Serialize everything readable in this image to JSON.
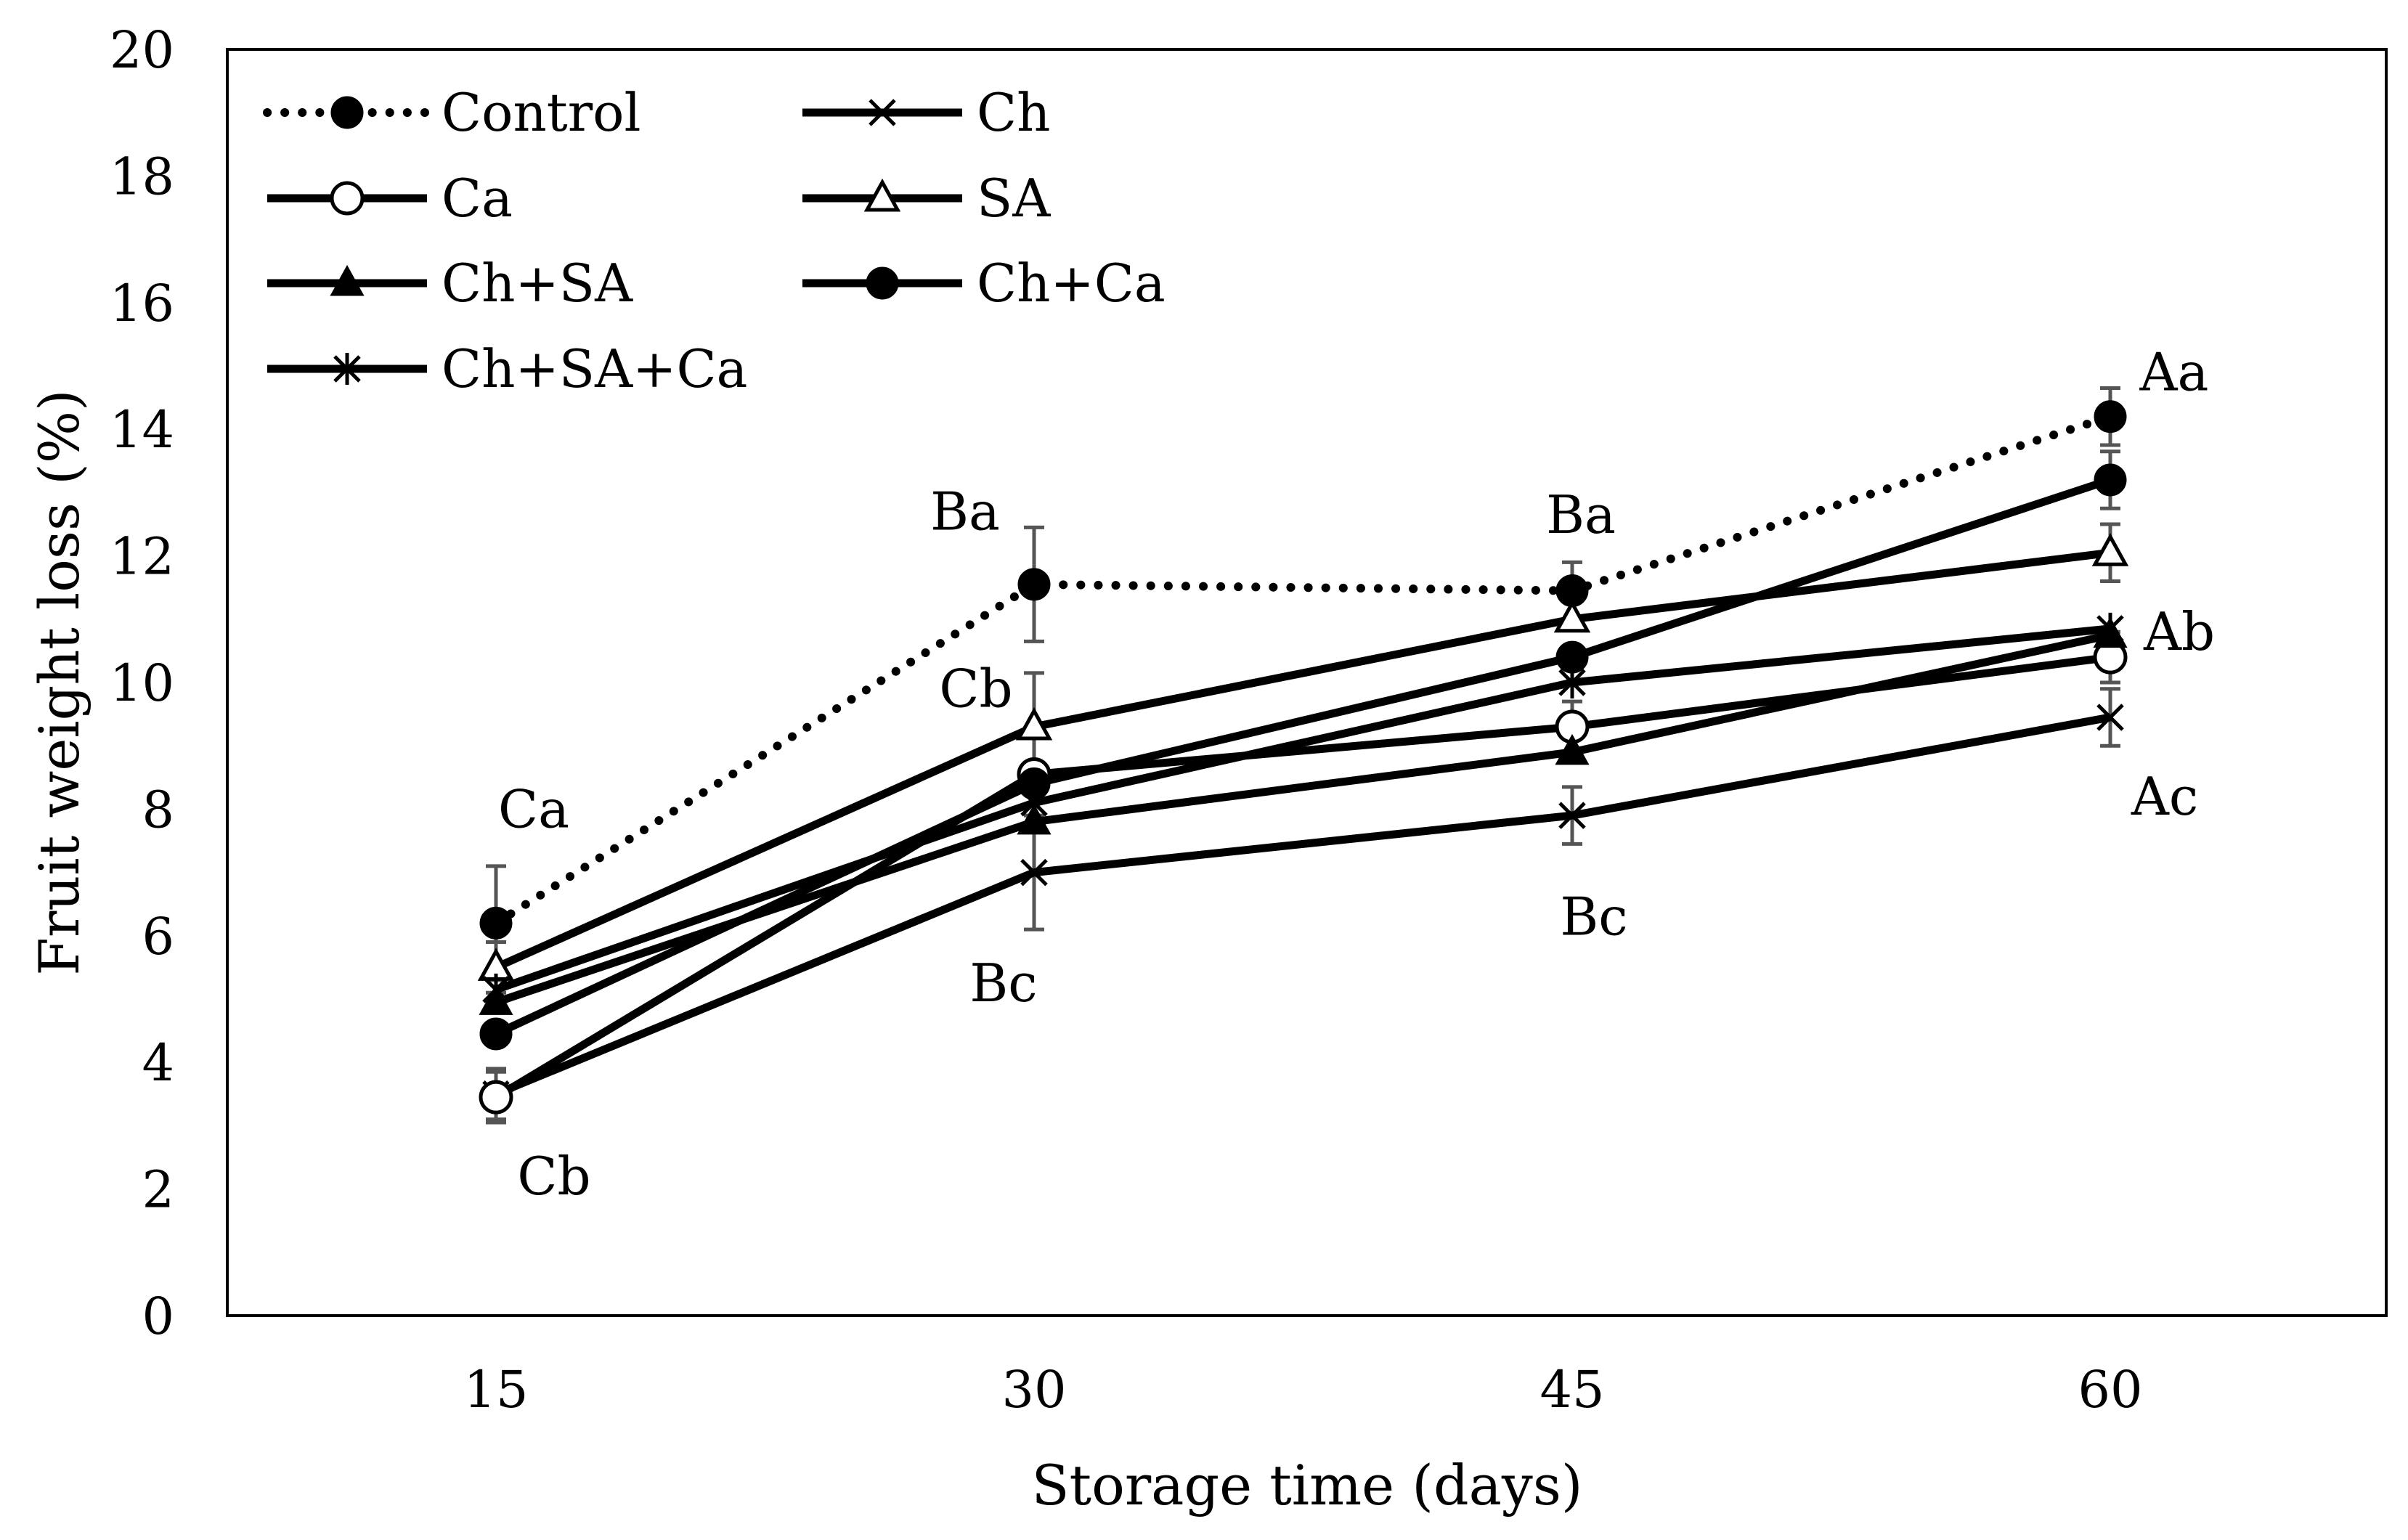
{
  "chart_data": {
    "type": "line",
    "title": "",
    "xlabel": "Storage time (days)",
    "ylabel": "Fruit weight loss (%)",
    "x": [
      15,
      30,
      45,
      60
    ],
    "x_tick_labels": [
      "15",
      "30",
      "45",
      "60"
    ],
    "ylim": [
      0,
      20
    ],
    "y_tick_labels": [
      "0",
      "2",
      "4",
      "6",
      "8",
      "10",
      "12",
      "14",
      "16",
      "18",
      "20"
    ],
    "grid": false,
    "legend_position": "top-left",
    "series": [
      {
        "name": "Control",
        "values": [
          6.2,
          11.55,
          11.45,
          14.2
        ],
        "error": [
          0.9,
          0.9,
          0.45,
          0.45
        ],
        "line": "dotted",
        "marker": "filled-circle"
      },
      {
        "name": "Ch",
        "values": [
          3.5,
          7.0,
          7.9,
          9.45
        ],
        "error": [
          0.4,
          0.9,
          0.45,
          0.45
        ],
        "line": "solid",
        "marker": "x"
      },
      {
        "name": "Ca",
        "values": [
          3.45,
          8.55,
          9.3,
          10.4
        ],
        "error": [
          0.4,
          0,
          0.4,
          0.4
        ],
        "line": "solid",
        "marker": "open-circle"
      },
      {
        "name": "SA",
        "values": [
          5.5,
          9.3,
          11.0,
          12.05
        ],
        "error": [
          0.4,
          0.85,
          0,
          0.45
        ],
        "line": "solid",
        "marker": "open-triangle"
      },
      {
        "name": "Ch+SA",
        "values": [
          4.95,
          7.8,
          8.9,
          10.75
        ],
        "error": [
          0,
          0,
          0,
          0
        ],
        "line": "solid",
        "marker": "filled-triangle"
      },
      {
        "name": "Ch+Ca",
        "values": [
          4.45,
          8.4,
          10.4,
          13.2
        ],
        "error": [
          0,
          0,
          0,
          0.45
        ],
        "line": "solid",
        "marker": "filled-circle"
      },
      {
        "name": "Ch+SA+Ca",
        "values": [
          5.15,
          8.1,
          10.0,
          10.85
        ],
        "error": [
          0,
          0,
          0,
          0
        ],
        "line": "solid",
        "marker": "asterisk"
      }
    ],
    "annotations": [
      {
        "text": "Ca",
        "x": 15,
        "y": 8.0
      },
      {
        "text": "Cb",
        "x": 15,
        "y": 2.2
      },
      {
        "text": "Ba",
        "x": 30,
        "y": 12.7
      },
      {
        "text": "Cb",
        "x": 30,
        "y": 9.9
      },
      {
        "text": "Bc",
        "x": 30,
        "y": 5.25
      },
      {
        "text": "Ba",
        "x": 45,
        "y": 12.65
      },
      {
        "text": "Bc",
        "x": 45,
        "y": 6.3
      },
      {
        "text": "Aa",
        "x": 60,
        "y": 14.9
      },
      {
        "text": "Ab",
        "x": 60,
        "y": 10.8
      },
      {
        "text": "Ac",
        "x": 60,
        "y": 8.2
      }
    ],
    "colors": {
      "line": "#000000",
      "error_bar": "#555555"
    }
  }
}
